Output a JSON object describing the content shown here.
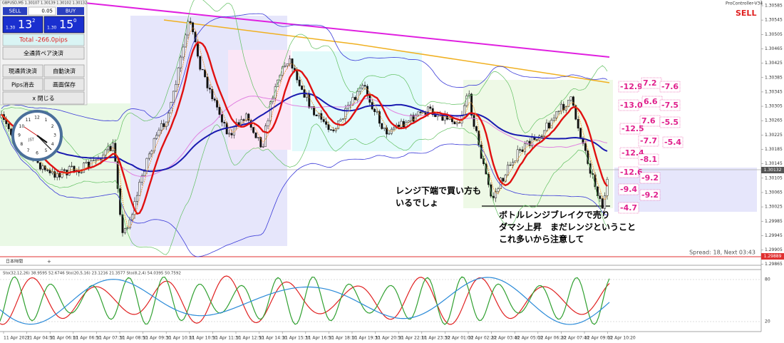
{
  "symbol_info": "GBPUSD,M5  1.30107 1.30139 1.30102 1.30132",
  "panel": {
    "sell": "SELL",
    "lot": "0.05",
    "buy": "BUY",
    "sell_price": {
      "big": "1.30",
      "main": "13",
      "sup": "2"
    },
    "buy_price": {
      "big": "1.30",
      "main": "15",
      "sup": "0"
    },
    "total": "Total   -266.0pips",
    "buttons": [
      "全通貨ペア決済",
      "現通貨決済",
      "自動決済",
      "Pips消去",
      "画面保存",
      "x 閉じる"
    ]
  },
  "indicator_name": "ProController-V34",
  "signal": "SELL",
  "price_axis": [
    "1.30585",
    "1.30545",
    "1.30505",
    "1.30465",
    "1.30425",
    "1.30385",
    "1.30345",
    "1.30305",
    "1.30265",
    "1.30225",
    "1.30185",
    "1.30145",
    "1.30105",
    "1.30065",
    "1.30025",
    "1.29985",
    "1.29945",
    "1.29905",
    "1.29865"
  ],
  "current_price": "1.30132",
  "low_line_price": "1.29889",
  "pips": [
    "-12.9",
    "7.2",
    "-7.6",
    "-13.0",
    "6.6",
    "-7.5",
    "7.6",
    "-5.5",
    "-12.5",
    "-7.7",
    "-5.4",
    "-12.4",
    "-8.1",
    "-12.6",
    "-9.2",
    "-9.4",
    "-9.2",
    "-4.7"
  ],
  "annotations": [
    [
      "レンジ下端で買い方も",
      "いるでしょ"
    ],
    [
      "ボトルレンジブレイクで売り",
      "ダマシ上昇　まだレンジということ",
      "これ多いから注意して"
    ]
  ],
  "spread": "Spread: 18, Next 03:43",
  "time_zone": "日本時間",
  "plus": "+",
  "clock": {
    "numbers": [
      "12",
      "1",
      "2",
      "3",
      "4",
      "5",
      "6",
      "7",
      "8",
      "9",
      "10",
      "11"
    ],
    "label": "JST"
  },
  "oscillator": {
    "label": "Sto(32,12,26) 38.9595 52.6746  Sto(20,5,16) 23.1216 21.3577  Sto(8,2,4) 54.0395 50.7592",
    "axis": [
      "80",
      "20"
    ]
  },
  "time_axis": [
    "11 Apr 2022",
    "11 Apr 04:50",
    "11 Apr 06:10",
    "11 Apr 06:50",
    "11 Apr 07:30",
    "11 Apr 08:50",
    "11 Apr 09:30",
    "11 Apr 10:10",
    "11 Apr 10:50",
    "11 Apr 11:30",
    "11 Apr 12:50",
    "11 Apr 14:10",
    "11 Apr 15:30",
    "11 Apr 16:50",
    "11 Apr 18:10",
    "11 Apr 19:30",
    "11 Apr 20:50",
    "11 Apr 22:10",
    "11 Apr 23:30",
    "12 Apr 01:00",
    "12 Apr 02:20",
    "12 Apr 03:40",
    "12 Apr 05:00",
    "12 Apr 06:20",
    "12 Apr 07:40",
    "12 Apr 09:00",
    "12 Apr 10:20"
  ]
}
